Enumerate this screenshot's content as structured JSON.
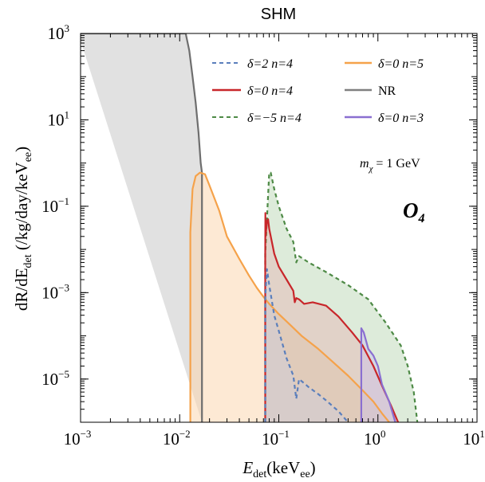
{
  "chart_data": {
    "type": "area",
    "title": "SHM",
    "xlabel": {
      "main": "E",
      "sub": "det",
      "tail": "(keV",
      "sub2": "ee",
      "end": ")"
    },
    "ylabel": {
      "main": "dR/dE",
      "sub": "det",
      "tail": " (/kg/day/keV",
      "sub2": "ee",
      "end": ")"
    },
    "x_scale": "log",
    "y_scale": "log",
    "xlim": [
      0.001,
      10
    ],
    "ylim": [
      1e-06,
      1000
    ],
    "x_ticks": [
      {
        "value": 0.001,
        "base": "10",
        "exp": "−3"
      },
      {
        "value": 0.01,
        "base": "10",
        "exp": "−2"
      },
      {
        "value": 0.1,
        "base": "10",
        "exp": "−1"
      },
      {
        "value": 1,
        "base": "10",
        "exp": "0"
      },
      {
        "value": 10,
        "base": "10",
        "exp": "1"
      }
    ],
    "y_ticks": [
      {
        "value": 1e-05,
        "base": "10",
        "exp": "−5"
      },
      {
        "value": 0.001,
        "base": "10",
        "exp": "−3"
      },
      {
        "value": 0.1,
        "base": "10",
        "exp": "−1"
      },
      {
        "value": 10,
        "base": "10",
        "exp": "1"
      },
      {
        "value": 1000,
        "base": "10",
        "exp": "3"
      }
    ],
    "annotations": {
      "mass": {
        "lhs": "m",
        "lhs_sub": "χ",
        "rhs": " = 1 GeV"
      },
      "operator": {
        "main": "O",
        "sub": "4"
      }
    },
    "legend": [
      {
        "label": "δ=2 n=4",
        "color": "#5b7fbc",
        "dash": "dashed"
      },
      {
        "label": "δ=0 n=5",
        "color": "#f5a24a",
        "dash": "solid"
      },
      {
        "label": "δ=0 n=4",
        "color": "#c8262a",
        "dash": "solid"
      },
      {
        "label": "NR",
        "color": "#808080",
        "dash": "solid"
      },
      {
        "label": "δ=−5 n=4",
        "color": "#4e8a46",
        "dash": "dashed"
      },
      {
        "label": "δ=0 n=3",
        "color": "#8a6fd1",
        "dash": "solid"
      }
    ],
    "series": [
      {
        "name": "NR",
        "color": "#6e6e6e",
        "fill": "#c8c8c8",
        "fill_opacity": 0.55,
        "dash": "solid",
        "points": [
          [
            0.00095,
            1000
          ],
          [
            0.0115,
            1000
          ],
          [
            0.0125,
            400
          ],
          [
            0.0135,
            100
          ],
          [
            0.0145,
            25
          ],
          [
            0.0155,
            5
          ],
          [
            0.0163,
            1
          ],
          [
            0.0168,
            0.6
          ],
          [
            0.0168,
            1e-06
          ]
        ]
      },
      {
        "name": "δ=0 n=5",
        "color": "#f5a24a",
        "fill": "#fbd7b0",
        "fill_opacity": 0.55,
        "dash": "solid",
        "points": [
          [
            0.0128,
            1e-06
          ],
          [
            0.0128,
            0.025
          ],
          [
            0.0135,
            0.25
          ],
          [
            0.0145,
            0.5
          ],
          [
            0.016,
            0.6
          ],
          [
            0.018,
            0.55
          ],
          [
            0.02,
            0.3
          ],
          [
            0.025,
            0.08
          ],
          [
            0.03,
            0.02
          ],
          [
            0.04,
            0.006
          ],
          [
            0.05,
            0.0025
          ],
          [
            0.06,
            0.0013
          ],
          [
            0.07,
            0.0008
          ],
          [
            0.08,
            0.00055
          ],
          [
            0.1,
            0.00032
          ],
          [
            0.13,
            0.00018
          ],
          [
            0.17,
            0.0001
          ],
          [
            0.25,
            5e-05
          ],
          [
            0.35,
            2.5e-05
          ],
          [
            0.5,
            1.2e-05
          ],
          [
            0.7,
            5.5e-06
          ],
          [
            0.9,
            3e-06
          ],
          [
            1.1,
            1.6e-06
          ],
          [
            1.3,
            1e-06
          ],
          [
            1.3,
            1e-06
          ]
        ]
      },
      {
        "name": "δ=0 n=4",
        "color": "#c8262a",
        "fill": "#e9a4a6",
        "fill_opacity": 0.35,
        "dash": "solid",
        "points": [
          [
            0.073,
            1e-06
          ],
          [
            0.073,
            0.008
          ],
          [
            0.0732,
            0.07
          ],
          [
            0.0735,
            0.02
          ],
          [
            0.076,
            0.045
          ],
          [
            0.078,
            0.05
          ],
          [
            0.08,
            0.03
          ],
          [
            0.09,
            0.008
          ],
          [
            0.1,
            0.004
          ],
          [
            0.12,
            0.002
          ],
          [
            0.14,
            0.0011
          ],
          [
            0.145,
            0.0006
          ],
          [
            0.15,
            0.00075
          ],
          [
            0.16,
            0.0007
          ],
          [
            0.18,
            0.00055
          ],
          [
            0.22,
            0.0006
          ],
          [
            0.3,
            0.0005
          ],
          [
            0.4,
            0.00028
          ],
          [
            0.55,
            0.00012
          ],
          [
            0.7,
            6e-05
          ],
          [
            0.9,
            2e-05
          ],
          [
            1.1,
            7e-06
          ],
          [
            1.35,
            2.5e-06
          ],
          [
            1.6,
            1e-06
          ],
          [
            1.6,
            1e-06
          ]
        ]
      },
      {
        "name": "δ=−5 n=4",
        "color": "#4e8a46",
        "fill": "#bcd8b6",
        "fill_opacity": 0.5,
        "dash": "dashed",
        "points": [
          [
            0.073,
            1e-06
          ],
          [
            0.073,
            0.008
          ],
          [
            0.08,
            0.6
          ],
          [
            0.083,
            0.6
          ],
          [
            0.09,
            0.25
          ],
          [
            0.1,
            0.1
          ],
          [
            0.12,
            0.03
          ],
          [
            0.14,
            0.015
          ],
          [
            0.15,
            0.005
          ],
          [
            0.155,
            0.006
          ],
          [
            0.16,
            0.007
          ],
          [
            0.2,
            0.005
          ],
          [
            0.3,
            0.003
          ],
          [
            0.5,
            0.0015
          ],
          [
            0.8,
            0.0007
          ],
          [
            1.2,
            0.0002
          ],
          [
            1.7,
            6e-05
          ],
          [
            2.0,
            2e-05
          ],
          [
            2.3,
            5e-06
          ],
          [
            2.5,
            1e-06
          ],
          [
            2.5,
            1e-06
          ]
        ]
      },
      {
        "name": "δ=2 n=4",
        "color": "#5b7fbc",
        "fill": "#c3d2ee",
        "fill_opacity": 0.3,
        "dash": "dashed",
        "points": [
          [
            0.073,
            1e-06
          ],
          [
            0.073,
            0.0008
          ],
          [
            0.076,
            0.0035
          ],
          [
            0.08,
            0.0015
          ],
          [
            0.09,
            0.0003
          ],
          [
            0.1,
            0.00013
          ],
          [
            0.12,
            3e-05
          ],
          [
            0.14,
            1.2e-05
          ],
          [
            0.15,
            3.5e-06
          ],
          [
            0.16,
            1e-05
          ],
          [
            0.18,
            8e-06
          ],
          [
            0.2,
            6.5e-06
          ],
          [
            0.25,
            4.5e-06
          ],
          [
            0.3,
            3.2e-06
          ],
          [
            0.4,
            1.8e-06
          ],
          [
            0.5,
            1e-06
          ],
          [
            0.5,
            1e-06
          ]
        ]
      },
      {
        "name": "δ=0 n=3",
        "color": "#8a6fd1",
        "fill": "#c9bdf0",
        "fill_opacity": 0.4,
        "dash": "solid",
        "points": [
          [
            0.68,
            1e-06
          ],
          [
            0.68,
            0.00015
          ],
          [
            0.72,
            0.00012
          ],
          [
            0.8,
            5e-05
          ],
          [
            0.9,
            3.5e-05
          ],
          [
            1.0,
            2e-05
          ],
          [
            1.1,
            7.5e-06
          ],
          [
            1.3,
            3e-06
          ],
          [
            1.5,
            1e-06
          ],
          [
            1.5,
            1e-06
          ]
        ]
      }
    ],
    "draw_order": [
      "NR",
      "δ=0 n=5",
      "δ=−5 n=4",
      "δ=0 n=4",
      "δ=2 n=4",
      "δ=0 n=3"
    ]
  }
}
